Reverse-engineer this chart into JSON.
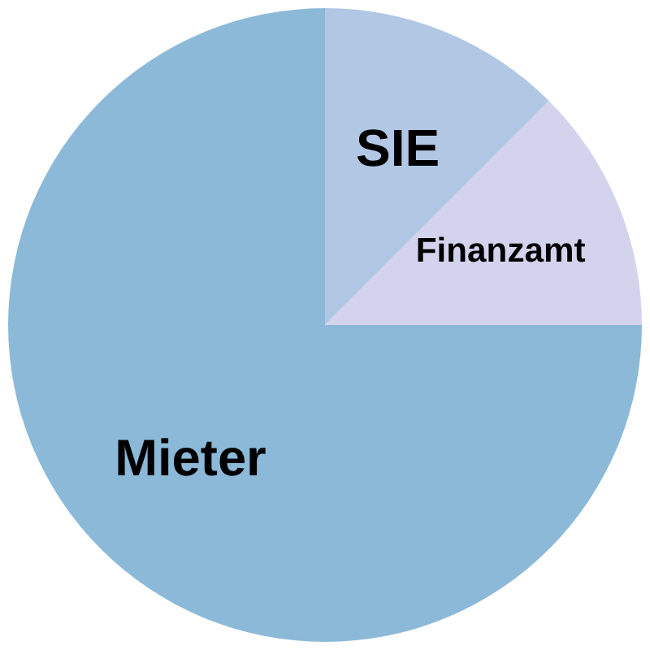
{
  "chart_data": {
    "type": "pie",
    "categories": [
      "SIE",
      "Finanzamt",
      "Mieter"
    ],
    "values": [
      12.5,
      12.5,
      75
    ],
    "colors": [
      "#b2c7e4",
      "#d3d3ee",
      "#8cb9d8"
    ]
  }
}
